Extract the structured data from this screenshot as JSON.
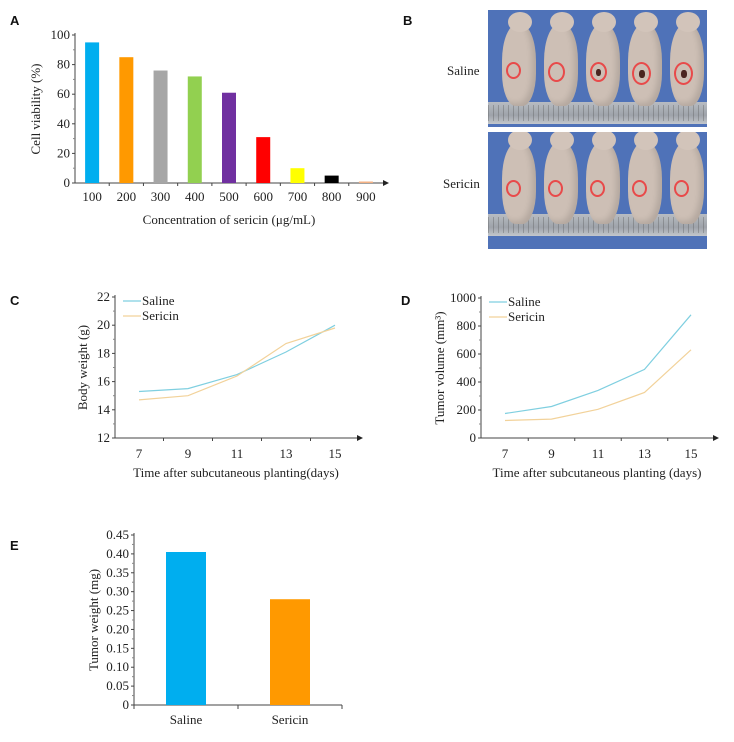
{
  "panels": {
    "A": "A",
    "B": "B",
    "C": "C",
    "D": "D",
    "E": "E"
  },
  "photo_panel": {
    "groups": [
      {
        "label": "Saline",
        "tumor_sizes": [
          "small",
          "medium",
          "medium-dark",
          "large-dark",
          "large-dark"
        ]
      },
      {
        "label": "Sericin",
        "tumor_sizes": [
          "small",
          "small",
          "small",
          "small",
          "small"
        ]
      }
    ],
    "colors": {
      "background": "#4f72b8",
      "tumor_outline": "#e84a4a"
    }
  },
  "chart_data": [
    {
      "id": "A",
      "type": "bar",
      "title": "",
      "xlabel": "Concentration of sericin (μg/mL)",
      "ylabel": "Cell viability (%)",
      "categories": [
        "100",
        "200",
        "300",
        "400",
        "500",
        "600",
        "700",
        "800",
        "900"
      ],
      "values": [
        95,
        85,
        76,
        72,
        61,
        31,
        10,
        5,
        1
      ],
      "colors": [
        "#00aeef",
        "#ff9900",
        "#a6a6a6",
        "#92d050",
        "#7030a0",
        "#ff0000",
        "#ffff00",
        "#000000",
        "#f4b183"
      ],
      "ylim": [
        0,
        100
      ],
      "yticks": [
        "0",
        "20",
        "40",
        "60",
        "80",
        "100"
      ],
      "grid": false,
      "legend": "none"
    },
    {
      "id": "C",
      "type": "line",
      "xlabel": "Time after subcutaneous planting(days)",
      "ylabel": "Body weight (g)",
      "x": [
        7,
        9,
        11,
        13,
        15
      ],
      "xticks": [
        "7",
        "9",
        "11",
        "13",
        "15"
      ],
      "ylim": [
        12,
        22
      ],
      "yticks": [
        "12",
        "14",
        "16",
        "18",
        "20",
        "22"
      ],
      "series": [
        {
          "name": "Saline",
          "color": "#7fcfe0",
          "values": [
            15.3,
            15.5,
            16.5,
            18.1,
            20.0
          ]
        },
        {
          "name": "Sericin",
          "color": "#f2d29a",
          "values": [
            14.7,
            15.0,
            16.4,
            18.7,
            19.8
          ]
        }
      ],
      "grid": false,
      "legend": "top-left"
    },
    {
      "id": "D",
      "type": "line",
      "xlabel": "Time after subcutaneous planting (days)",
      "ylabel": "Tumor volume (mm³)",
      "x": [
        7,
        9,
        11,
        13,
        15
      ],
      "xticks": [
        "7",
        "9",
        "11",
        "13",
        "15"
      ],
      "ylim": [
        0,
        1000
      ],
      "yticks": [
        "0",
        "200",
        "400",
        "600",
        "800",
        "1000"
      ],
      "series": [
        {
          "name": "Saline",
          "color": "#7fcfe0",
          "values": [
            175,
            225,
            340,
            490,
            880
          ]
        },
        {
          "name": "Sericin",
          "color": "#f2d29a",
          "values": [
            125,
            135,
            205,
            325,
            630
          ]
        }
      ],
      "grid": false,
      "legend": "top-left"
    },
    {
      "id": "E",
      "type": "bar",
      "xlabel": "",
      "ylabel": "Tumor weight (mg)",
      "categories": [
        "Saline",
        "Sericin"
      ],
      "values": [
        0.405,
        0.28
      ],
      "colors": [
        "#00aeef",
        "#ff9900"
      ],
      "ylim": [
        0,
        0.45
      ],
      "yticks": [
        "0",
        "0.05",
        "0.10",
        "0.15",
        "0.20",
        "0.25",
        "0.30",
        "0.35",
        "0.40",
        "0.45"
      ],
      "grid": false,
      "legend": "none"
    }
  ]
}
